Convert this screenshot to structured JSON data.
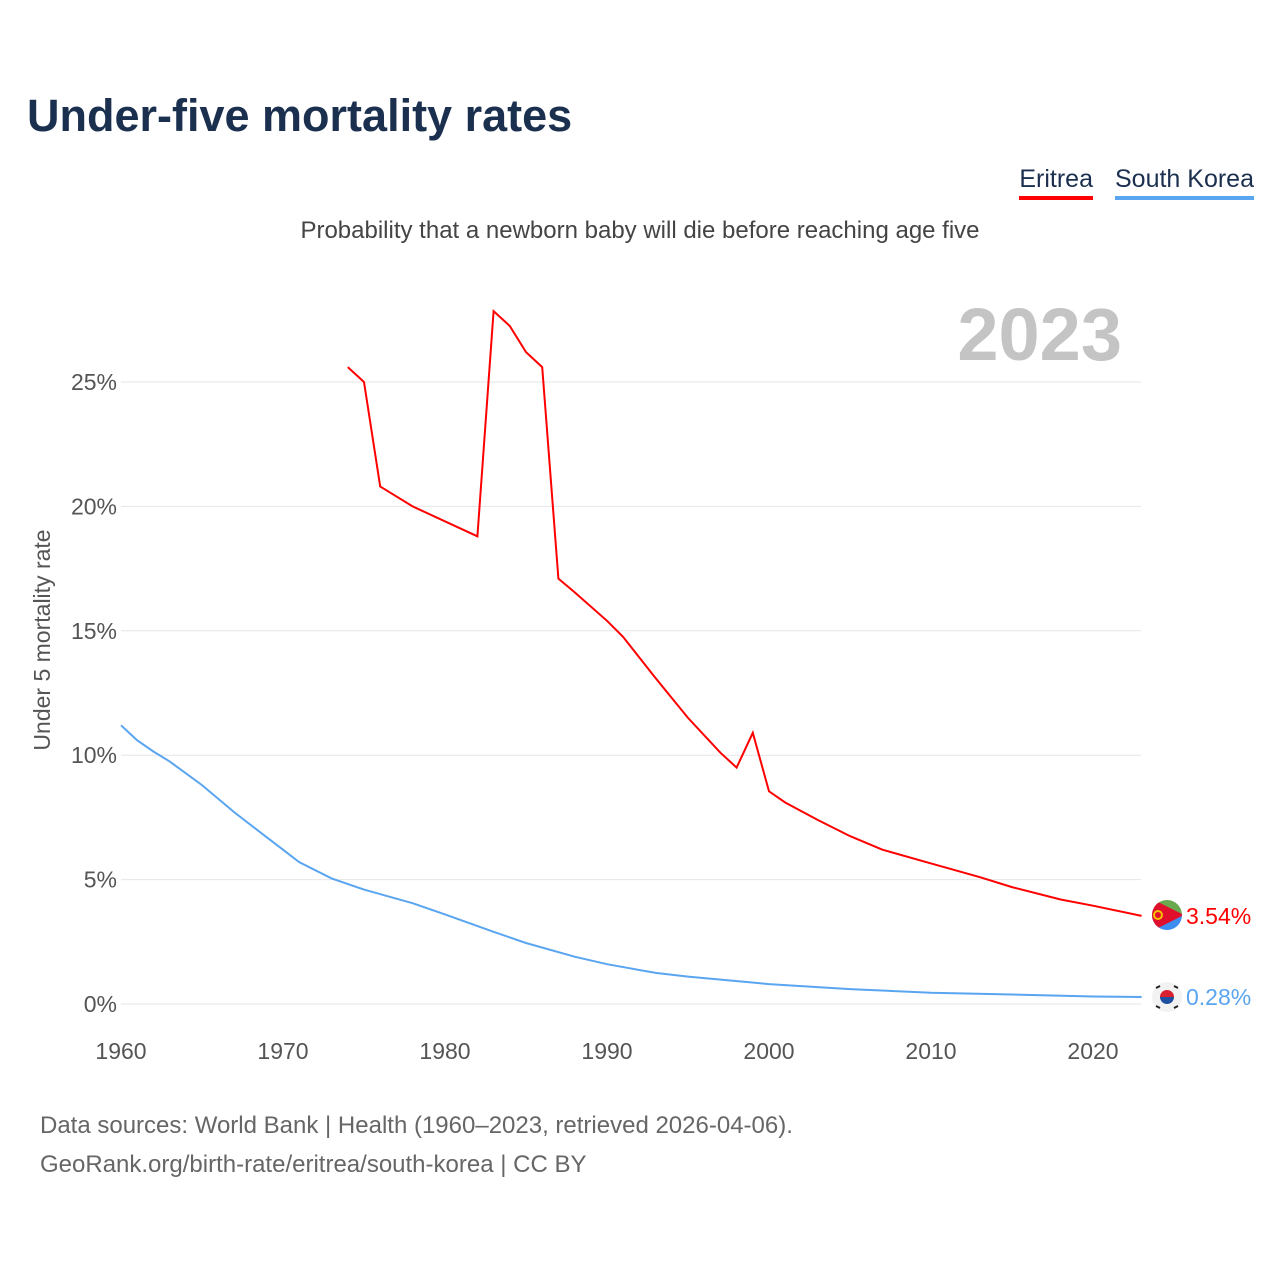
{
  "title": "Under-five mortality rates",
  "subtitle": "Probability that a newborn baby will die before reaching age five",
  "legend": [
    {
      "name": "Eritrea",
      "color": "#ff0000"
    },
    {
      "name": "South Korea",
      "color": "#5aa5f0"
    }
  ],
  "year_label": "2023",
  "source_line1": "Data sources: World Bank | Health (1960–2023, retrieved 2026-04-06).",
  "source_line2": "GeoRank.org/birth-rate/eritrea/south-korea | CC BY",
  "chart_data": {
    "type": "line",
    "title": "Under-five mortality rates",
    "ylabel": "Under 5 mortality rate",
    "xlabel": "",
    "xlim": [
      1960,
      2023
    ],
    "ylim": [
      0,
      27.9
    ],
    "xticks": [
      1960,
      1970,
      1980,
      1990,
      2000,
      2010,
      2020
    ],
    "yticks": [
      {
        "v": 0,
        "label": "0%"
      },
      {
        "v": 5,
        "label": "5%"
      },
      {
        "v": 10,
        "label": "10%"
      },
      {
        "v": 15,
        "label": "15%"
      },
      {
        "v": 20,
        "label": "20%"
      },
      {
        "v": 25,
        "label": "25%"
      }
    ],
    "grid": true,
    "legend_position": "top-right",
    "series": [
      {
        "name": "Eritrea",
        "color": "#ff0000",
        "end_label": "3.54%",
        "points": [
          [
            1974,
            25.6
          ],
          [
            1975,
            25.0
          ],
          [
            1976,
            20.8
          ],
          [
            1978,
            20.0
          ],
          [
            1982,
            18.8
          ],
          [
            1983,
            27.85
          ],
          [
            1984,
            27.25
          ],
          [
            1985,
            26.2
          ],
          [
            1986,
            25.6
          ],
          [
            1987,
            17.1
          ],
          [
            1988,
            16.55
          ],
          [
            1990,
            15.4
          ],
          [
            1991,
            14.75
          ],
          [
            1993,
            13.1
          ],
          [
            1995,
            11.5
          ],
          [
            1997,
            10.1
          ],
          [
            1998,
            9.5
          ],
          [
            1999,
            10.9
          ],
          [
            2000,
            8.55
          ],
          [
            2001,
            8.1
          ],
          [
            2003,
            7.4
          ],
          [
            2005,
            6.75
          ],
          [
            2007,
            6.2
          ],
          [
            2010,
            5.65
          ],
          [
            2013,
            5.1
          ],
          [
            2015,
            4.7
          ],
          [
            2018,
            4.2
          ],
          [
            2020,
            3.95
          ],
          [
            2023,
            3.54
          ]
        ]
      },
      {
        "name": "South Korea",
        "color": "#5aa5f0",
        "end_label": "0.28%",
        "points": [
          [
            1960,
            11.2
          ],
          [
            1961,
            10.6
          ],
          [
            1962,
            10.15
          ],
          [
            1963,
            9.75
          ],
          [
            1965,
            8.8
          ],
          [
            1967,
            7.7
          ],
          [
            1969,
            6.7
          ],
          [
            1970,
            6.2
          ],
          [
            1971,
            5.7
          ],
          [
            1973,
            5.05
          ],
          [
            1975,
            4.6
          ],
          [
            1978,
            4.05
          ],
          [
            1980,
            3.6
          ],
          [
            1983,
            2.9
          ],
          [
            1985,
            2.45
          ],
          [
            1988,
            1.9
          ],
          [
            1990,
            1.6
          ],
          [
            1993,
            1.25
          ],
          [
            1995,
            1.1
          ],
          [
            2000,
            0.8
          ],
          [
            2005,
            0.6
          ],
          [
            2010,
            0.45
          ],
          [
            2015,
            0.38
          ],
          [
            2020,
            0.3
          ],
          [
            2023,
            0.28
          ]
        ]
      }
    ]
  }
}
